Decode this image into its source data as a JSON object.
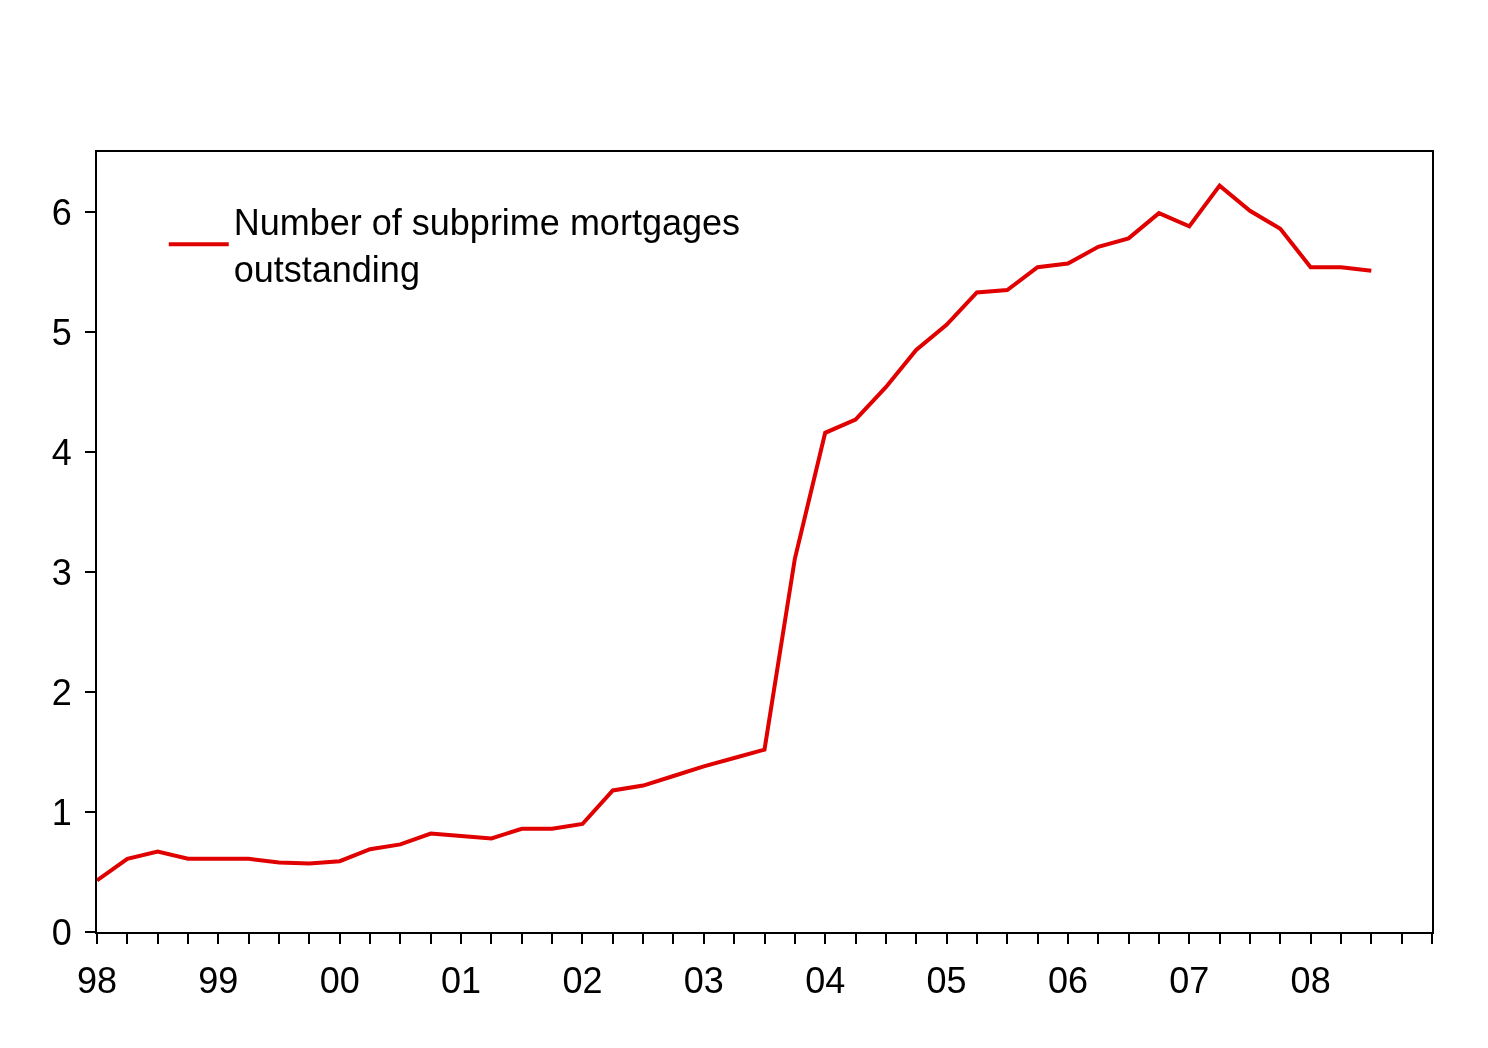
{
  "chart_data": {
    "type": "line",
    "x": [
      1998,
      1998.25,
      1998.5,
      1998.75,
      1999,
      1999.25,
      1999.5,
      1999.75,
      2000,
      2000.25,
      2000.5,
      2000.75,
      2001,
      2001.25,
      2001.5,
      2001.75,
      2002,
      2002.25,
      2002.5,
      2002.75,
      2003,
      2003.25,
      2003.5,
      2003.75,
      2004,
      2004.25,
      2004.5,
      2004.75,
      2005,
      2005.25,
      2005.5,
      2005.75,
      2006,
      2006.25,
      2006.5,
      2006.75,
      2007,
      2007.25,
      2007.5,
      2007.75,
      2008,
      2008.25,
      2008.5
    ],
    "series": [
      {
        "name": "Number of subprime mortgages outstanding",
        "color": "#e00000",
        "values": [
          0.43,
          0.61,
          0.67,
          0.61,
          0.61,
          0.61,
          0.58,
          0.57,
          0.59,
          0.69,
          0.73,
          0.82,
          0.8,
          0.78,
          0.86,
          0.86,
          0.9,
          1.18,
          1.22,
          1.3,
          1.38,
          1.45,
          1.52,
          3.11,
          4.16,
          4.27,
          4.54,
          4.85,
          5.06,
          5.33,
          5.35,
          5.54,
          5.57,
          5.71,
          5.78,
          5.99,
          5.88,
          6.22,
          6.01,
          5.86,
          5.54,
          5.54,
          5.51
        ]
      }
    ],
    "xlim": [
      1998,
      2009
    ],
    "xticks": [
      {
        "value": 1998,
        "label": "98"
      },
      {
        "value": 1998.25,
        "label": null
      },
      {
        "value": 1998.5,
        "label": null
      },
      {
        "value": 1998.75,
        "label": null
      },
      {
        "value": 1999,
        "label": "99"
      },
      {
        "value": 1999.25,
        "label": null
      },
      {
        "value": 1999.5,
        "label": null
      },
      {
        "value": 1999.75,
        "label": null
      },
      {
        "value": 2000,
        "label": "00"
      },
      {
        "value": 2000.25,
        "label": null
      },
      {
        "value": 2000.5,
        "label": null
      },
      {
        "value": 2000.75,
        "label": null
      },
      {
        "value": 2001,
        "label": "01"
      },
      {
        "value": 2001.25,
        "label": null
      },
      {
        "value": 2001.5,
        "label": null
      },
      {
        "value": 2001.75,
        "label": null
      },
      {
        "value": 2002,
        "label": "02"
      },
      {
        "value": 2002.25,
        "label": null
      },
      {
        "value": 2002.5,
        "label": null
      },
      {
        "value": 2002.75,
        "label": null
      },
      {
        "value": 2003,
        "label": "03"
      },
      {
        "value": 2003.25,
        "label": null
      },
      {
        "value": 2003.5,
        "label": null
      },
      {
        "value": 2003.75,
        "label": null
      },
      {
        "value": 2004,
        "label": "04"
      },
      {
        "value": 2004.25,
        "label": null
      },
      {
        "value": 2004.5,
        "label": null
      },
      {
        "value": 2004.75,
        "label": null
      },
      {
        "value": 2005,
        "label": "05"
      },
      {
        "value": 2005.25,
        "label": null
      },
      {
        "value": 2005.5,
        "label": null
      },
      {
        "value": 2005.75,
        "label": null
      },
      {
        "value": 2006,
        "label": "06"
      },
      {
        "value": 2006.25,
        "label": null
      },
      {
        "value": 2006.5,
        "label": null
      },
      {
        "value": 2006.75,
        "label": null
      },
      {
        "value": 2007,
        "label": "07"
      },
      {
        "value": 2007.25,
        "label": null
      },
      {
        "value": 2007.5,
        "label": null
      },
      {
        "value": 2007.75,
        "label": null
      },
      {
        "value": 2008,
        "label": "08"
      },
      {
        "value": 2008.25,
        "label": null
      },
      {
        "value": 2008.5,
        "label": null
      },
      {
        "value": 2008.75,
        "label": null
      },
      {
        "value": 2009,
        "label": null
      }
    ],
    "ylim": [
      0,
      6.5
    ],
    "yticks": [
      0,
      1,
      2,
      3,
      4,
      5,
      6
    ],
    "legend": "top left",
    "marker": "none",
    "line_style": "solid"
  }
}
